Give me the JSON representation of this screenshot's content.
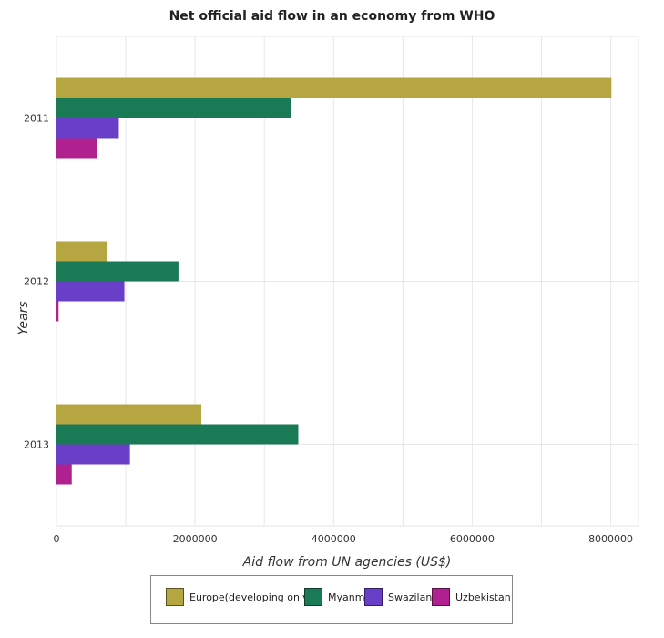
{
  "chart_data": {
    "type": "bar",
    "orientation": "horizontal",
    "title": "Net official aid flow in an economy from WHO",
    "xlabel": "Aid flow from UN agencies (US$)",
    "ylabel": "Years",
    "categories": [
      "2011",
      "2012",
      "2013"
    ],
    "xlim": [
      0,
      8400000
    ],
    "xticks": [
      0,
      2000000,
      4000000,
      6000000,
      8000000
    ],
    "xtick_labels": [
      "0",
      "2000000",
      "4000000",
      "6000000",
      "8000000"
    ],
    "grid": true,
    "legend_position": "bottom",
    "series": [
      {
        "name": "Europe(developing only)",
        "color": "#b5a642",
        "values": [
          8010000,
          730000,
          2090000
        ]
      },
      {
        "name": "Myanmar",
        "color": "#1a7a56",
        "values": [
          3380000,
          1760000,
          3490000
        ]
      },
      {
        "name": "Swaziland",
        "color": "#6a3fc8",
        "values": [
          900000,
          980000,
          1060000
        ]
      },
      {
        "name": "Uzbekistan",
        "color": "#b0208e",
        "values": [
          590000,
          30000,
          220000
        ]
      }
    ]
  }
}
